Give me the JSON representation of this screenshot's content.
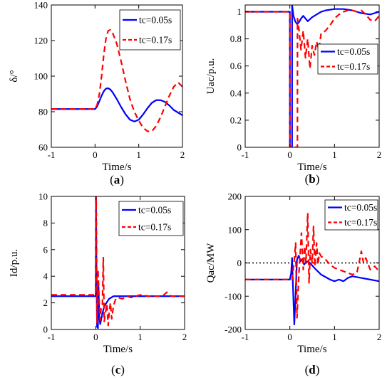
{
  "chart_data": [
    {
      "type": "line",
      "panel": "(a)",
      "caption_letter": "a",
      "xlabel": "Time/s",
      "ylabel": "δ/°",
      "xlim": [
        -1,
        2
      ],
      "ylim": [
        60,
        140
      ],
      "xticks": [
        -1,
        0,
        1,
        2
      ],
      "yticks": [
        60,
        80,
        100,
        120,
        140
      ],
      "legend_position": "top-right",
      "series": [
        {
          "name": "tc=0.05s",
          "color": "#0000ff",
          "dash": "solid",
          "x": [
            -1,
            0,
            0.05,
            0.1,
            0.15,
            0.2,
            0.25,
            0.3,
            0.35,
            0.4,
            0.5,
            0.6,
            0.7,
            0.8,
            0.9,
            1.0,
            1.1,
            1.2,
            1.3,
            1.4,
            1.5,
            1.6,
            1.7,
            1.8,
            1.9,
            2.0
          ],
          "y": [
            81.5,
            81.5,
            83,
            86,
            89,
            91.5,
            93,
            93.2,
            92.5,
            91,
            87,
            82.5,
            78.5,
            75.5,
            74.5,
            75.5,
            78.5,
            82,
            85,
            86.5,
            86.5,
            85.5,
            83.5,
            81,
            79.5,
            78
          ]
        },
        {
          "name": "tc=0.17s",
          "color": "#ff0000",
          "dash": "dashed",
          "x": [
            -1,
            0,
            0.05,
            0.1,
            0.15,
            0.2,
            0.25,
            0.3,
            0.35,
            0.4,
            0.5,
            0.6,
            0.7,
            0.8,
            0.9,
            1.0,
            1.1,
            1.2,
            1.3,
            1.4,
            1.5,
            1.6,
            1.7,
            1.8,
            1.9,
            2.0
          ],
          "y": [
            81.5,
            81.5,
            84,
            90,
            100,
            112,
            121,
            125.5,
            126,
            124.5,
            118,
            108,
            97,
            87,
            80,
            75,
            71,
            69,
            69,
            72,
            77,
            83,
            89,
            94,
            96.5,
            94
          ]
        }
      ]
    },
    {
      "type": "line",
      "panel": "(b)",
      "caption_letter": "b",
      "xlabel": "Time/s",
      "ylabel": "Uac/p.u.",
      "xlim": [
        -1,
        2
      ],
      "ylim": [
        0,
        1.05
      ],
      "xticks": [
        -1,
        0,
        1,
        2
      ],
      "yticks": [
        0,
        0.2,
        0.4,
        0.6,
        0.8,
        1
      ],
      "legend_position": "right",
      "series": [
        {
          "name": "tc=0.05s",
          "color": "#0000ff",
          "dash": "solid",
          "x": [
            -1,
            0,
            0.001,
            0.05,
            0.051,
            0.08,
            0.12,
            0.16,
            0.2,
            0.25,
            0.3,
            0.35,
            0.4,
            0.5,
            0.6,
            0.7,
            0.8,
            1.0,
            1.2,
            1.4,
            1.6,
            1.8,
            2.0
          ],
          "y": [
            1.0,
            1.0,
            0.0,
            0.0,
            1.05,
            0.97,
            0.93,
            0.91,
            0.92,
            0.95,
            0.97,
            0.95,
            0.93,
            0.96,
            0.98,
            1.0,
            1.01,
            1.02,
            1.02,
            1.01,
            0.99,
            0.98,
            1.0
          ]
        },
        {
          "name": "tc=0.17s",
          "color": "#ff0000",
          "dash": "dashed",
          "x": [
            -1,
            0,
            0.001,
            0.17,
            0.171,
            0.2,
            0.25,
            0.3,
            0.35,
            0.4,
            0.45,
            0.5,
            0.55,
            0.6,
            0.65,
            0.7,
            0.8,
            0.9,
            1.0,
            1.1,
            1.2,
            1.3,
            1.4,
            1.5,
            1.6,
            1.7,
            1.8,
            1.9,
            2.0
          ],
          "y": [
            1.0,
            1.0,
            0.0,
            0.0,
            0.95,
            0.88,
            0.72,
            0.86,
            0.66,
            0.8,
            0.58,
            0.75,
            0.68,
            0.78,
            0.72,
            0.84,
            0.86,
            0.9,
            0.95,
            0.98,
            1.0,
            1.01,
            1.01,
            1.0,
            1.01,
            0.98,
            0.94,
            0.93,
            0.97
          ]
        }
      ]
    },
    {
      "type": "line",
      "panel": "(c)",
      "caption_letter": "c",
      "xlabel": "Time/s",
      "ylabel": "Id/p.u.",
      "xlim": [
        -1,
        2
      ],
      "ylim": [
        0,
        10
      ],
      "xticks": [
        -1,
        0,
        1,
        2
      ],
      "yticks": [
        0,
        2,
        4,
        6,
        8,
        10
      ],
      "legend_position": "top-right",
      "series": [
        {
          "name": "tc=0.05s",
          "color": "#0000ff",
          "dash": "solid",
          "x": [
            -1,
            0,
            0.005,
            0.02,
            0.03,
            0.05,
            0.06,
            0.08,
            0.1,
            0.12,
            0.15,
            0.18,
            0.22,
            0.26,
            0.3,
            0.35,
            0.4,
            0.5,
            0.7,
            1.0,
            1.5,
            2.0
          ],
          "y": [
            2.5,
            2.5,
            10,
            3.0,
            0.2,
            0.1,
            3.5,
            1.0,
            0.4,
            0.7,
            1.2,
            1.6,
            1.9,
            2.1,
            2.3,
            2.4,
            2.5,
            2.5,
            2.5,
            2.5,
            2.5,
            2.5
          ]
        },
        {
          "name": "tc=0.17s",
          "color": "#ff0000",
          "dash": "dashed",
          "x": [
            -1,
            0,
            0.01,
            0.03,
            0.05,
            0.08,
            0.1,
            0.12,
            0.15,
            0.17,
            0.19,
            0.22,
            0.25,
            0.28,
            0.3,
            0.33,
            0.36,
            0.4,
            0.45,
            0.5,
            0.6,
            0.7,
            0.8,
            1.0,
            1.2,
            1.5,
            1.6,
            1.7,
            2.0
          ],
          "y": [
            2.6,
            2.6,
            10,
            0.5,
            4.5,
            2.0,
            0.7,
            1.6,
            1.9,
            5.4,
            0.6,
            1.3,
            1.9,
            0.3,
            1.2,
            2.0,
            0.8,
            1.8,
            2.3,
            2.4,
            2.3,
            2.5,
            2.4,
            2.6,
            2.5,
            2.5,
            2.8,
            2.5,
            2.5
          ]
        }
      ]
    },
    {
      "type": "line",
      "panel": "(d)",
      "caption_letter": "d",
      "xlabel": "Time/s",
      "ylabel": "Qac/MW",
      "xlim": [
        -1,
        2
      ],
      "ylim": [
        -200,
        200
      ],
      "xticks": [
        -1,
        0,
        1,
        2
      ],
      "yticks": [
        -200,
        -100,
        0,
        100,
        200
      ],
      "legend_position": "top-right",
      "reference_line": {
        "y": 0,
        "color": "#000000",
        "dash": "dotted"
      },
      "series": [
        {
          "name": "tc=0.05s",
          "color": "#0000ff",
          "dash": "solid",
          "x": [
            -1,
            0,
            0.03,
            0.05,
            0.07,
            0.1,
            0.13,
            0.16,
            0.2,
            0.24,
            0.28,
            0.32,
            0.38,
            0.45,
            0.55,
            0.7,
            0.9,
            1.0,
            1.1,
            1.2,
            1.3,
            1.4,
            1.6,
            1.8,
            2.0
          ],
          "y": [
            -50,
            -50,
            -30,
            15,
            -70,
            -185,
            -90,
            10,
            22,
            5,
            12,
            -5,
            5,
            0,
            -15,
            -35,
            -50,
            -55,
            -50,
            -55,
            -45,
            -40,
            -45,
            -50,
            -55
          ]
        },
        {
          "name": "tc=0.17s",
          "color": "#ff0000",
          "dash": "dashed",
          "x": [
            -1,
            0,
            0.05,
            0.1,
            0.13,
            0.16,
            0.2,
            0.23,
            0.26,
            0.3,
            0.33,
            0.36,
            0.4,
            0.43,
            0.46,
            0.5,
            0.53,
            0.56,
            0.6,
            0.63,
            0.66,
            0.7,
            0.8,
            0.9,
            1.0,
            1.2,
            1.4,
            1.5,
            1.55,
            1.6,
            1.65,
            1.7,
            1.8,
            1.9,
            2.0
          ],
          "y": [
            -50,
            -50,
            -50,
            10,
            60,
            -165,
            -40,
            25,
            90,
            -20,
            50,
            0,
            150,
            -60,
            40,
            0,
            110,
            -10,
            60,
            -5,
            30,
            20,
            10,
            -5,
            -15,
            -25,
            -35,
            -30,
            0,
            35,
            0,
            15,
            -20,
            -10,
            -25
          ]
        }
      ]
    }
  ]
}
